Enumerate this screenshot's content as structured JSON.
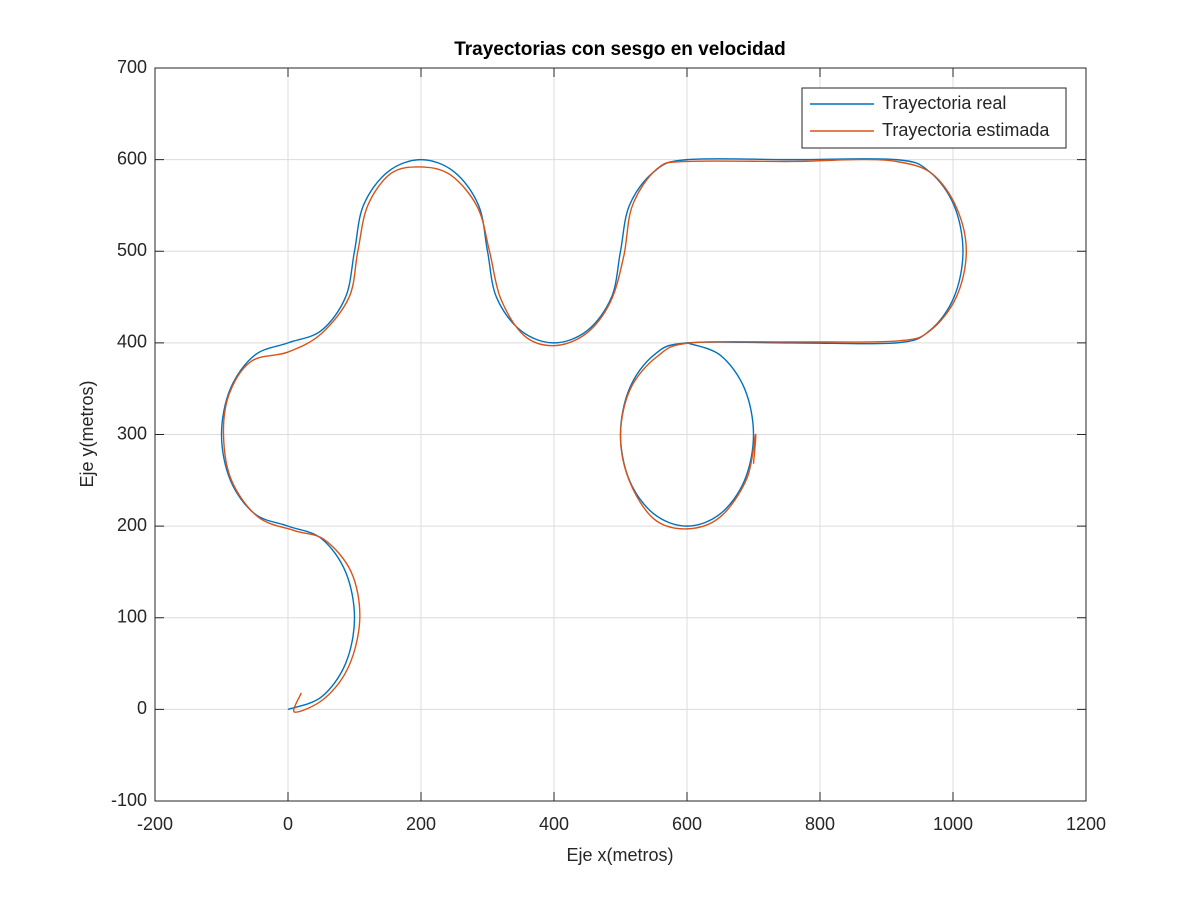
{
  "chart_data": {
    "type": "line",
    "title": "Trayectorias con sesgo en velocidad",
    "xlabel": "Eje x(metros)",
    "ylabel": "Eje y(metros)",
    "xlim": [
      -200,
      1200
    ],
    "xticks": [
      -200,
      0,
      200,
      400,
      600,
      800,
      1000,
      1200
    ],
    "ylim": [
      -100,
      700
    ],
    "yticks": [
      -100,
      0,
      100,
      200,
      300,
      400,
      500,
      600,
      700
    ],
    "grid": true,
    "legend": "northeast",
    "series": [
      {
        "name": "Trayectoria real",
        "color": "#0072bd",
        "x": [
          0,
          50,
          86.6,
          100,
          86.6,
          50,
          0,
          -50,
          -86.6,
          -100,
          -86.6,
          -50,
          0,
          50,
          86.6,
          100,
          113.4,
          150,
          200,
          250,
          286.6,
          300,
          313.4,
          350,
          400,
          450,
          486.6,
          500,
          513.4,
          550,
          600,
          760,
          915,
          965,
          1001.6,
          1015,
          1001.6,
          965,
          915,
          760,
          600,
          550,
          513.4,
          500,
          513.4,
          550,
          600,
          650,
          686.6,
          700,
          686.6,
          650,
          600
        ],
        "values": [
          0,
          13.4,
          50,
          100,
          150,
          186.6,
          200,
          213.4,
          250,
          300,
          350,
          386.6,
          400,
          413.4,
          450,
          500,
          550,
          586.6,
          600,
          586.6,
          550,
          500,
          450,
          413.4,
          400,
          413.4,
          450,
          500,
          550,
          586.6,
          600,
          600,
          600,
          586.6,
          550,
          500,
          450,
          413.4,
          400,
          400,
          400,
          386.6,
          350,
          300,
          250,
          213.4,
          200,
          213.4,
          250,
          300,
          350,
          386.6,
          400
        ]
      },
      {
        "name": "Trayectoria estimada",
        "color": "#d95319",
        "x": [
          20,
          10,
          55,
          92,
          108,
          95,
          55,
          10,
          -45,
          -85,
          -97,
          -88,
          -55,
          0,
          50,
          92,
          105,
          120,
          155,
          200,
          245,
          285,
          303,
          320,
          355,
          400,
          448,
          485,
          505,
          518,
          555,
          600,
          760,
          850,
          915,
          968,
          1005,
          1020,
          1005,
          965,
          915,
          760,
          605,
          555,
          515,
          500,
          513,
          550,
          600,
          650,
          690,
          703,
          700
        ],
        "values": [
          18,
          -3,
          12,
          48,
          100,
          150,
          185,
          195,
          210,
          250,
          300,
          345,
          380,
          390,
          410,
          450,
          500,
          550,
          585,
          592,
          583,
          548,
          500,
          448,
          408,
          397,
          410,
          445,
          495,
          550,
          590,
          598,
          598,
          600,
          598,
          585,
          548,
          500,
          450,
          413,
          402,
          401,
          400,
          385,
          350,
          300,
          250,
          208,
          197,
          210,
          252,
          300,
          268
        ]
      }
    ]
  }
}
